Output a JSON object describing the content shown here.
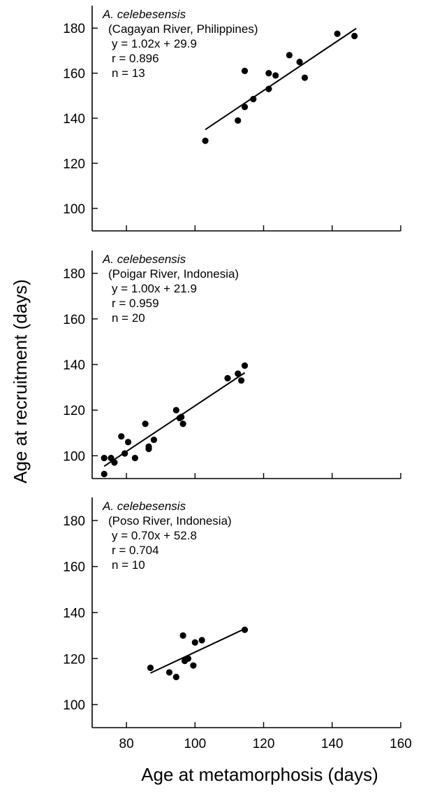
{
  "figure": {
    "ylabel": "Age at recruitment (days)",
    "xlabel": "Age at metamorphosis (days)"
  },
  "chart_data": [
    {
      "type": "scatter",
      "annotation": {
        "species": "A. celebesensis",
        "location": "(Cagayan River, Philippines)",
        "equation": "y = 1.02x + 29.9",
        "r": "r = 0.896",
        "n": "n = 13"
      },
      "xlim": [
        70,
        160
      ],
      "ylim": [
        90,
        190
      ],
      "x_ticks": [
        80,
        100,
        120,
        140,
        160
      ],
      "y_ticks": [
        100,
        120,
        140,
        160,
        180
      ],
      "y_tick_labels": [
        "100",
        "120",
        "140",
        "160",
        "180"
      ],
      "show_x_tick_labels": false,
      "points": [
        {
          "x": 103,
          "y": 130
        },
        {
          "x": 112.5,
          "y": 139
        },
        {
          "x": 114.5,
          "y": 145
        },
        {
          "x": 114.5,
          "y": 161
        },
        {
          "x": 117,
          "y": 148.5
        },
        {
          "x": 121.5,
          "y": 153
        },
        {
          "x": 121.5,
          "y": 160
        },
        {
          "x": 123.5,
          "y": 159
        },
        {
          "x": 127.5,
          "y": 168
        },
        {
          "x": 130.5,
          "y": 165
        },
        {
          "x": 132,
          "y": 158
        },
        {
          "x": 141.5,
          "y": 177.5
        },
        {
          "x": 146.5,
          "y": 176.5
        }
      ],
      "fit": {
        "slope": 1.02,
        "intercept": 29.9,
        "x_range": [
          103,
          147
        ]
      }
    },
    {
      "type": "scatter",
      "annotation": {
        "species": "A. celebesensis",
        "location": "(Poigar River, Indonesia)",
        "equation": "y = 1.00x + 21.9",
        "r": "r = 0.959",
        "n": "n = 20"
      },
      "xlim": [
        70,
        160
      ],
      "ylim": [
        90,
        190
      ],
      "x_ticks": [
        80,
        100,
        120,
        140,
        160
      ],
      "y_ticks": [
        100,
        120,
        140,
        160,
        180
      ],
      "y_tick_labels": [
        "100",
        "120",
        "140",
        "160",
        "180"
      ],
      "show_x_tick_labels": false,
      "points": [
        {
          "x": 73.5,
          "y": 92
        },
        {
          "x": 73.5,
          "y": 99
        },
        {
          "x": 75.5,
          "y": 99
        },
        {
          "x": 76.5,
          "y": 97
        },
        {
          "x": 78.5,
          "y": 108.5
        },
        {
          "x": 79.5,
          "y": 101
        },
        {
          "x": 80.5,
          "y": 106
        },
        {
          "x": 82.5,
          "y": 99
        },
        {
          "x": 85.5,
          "y": 114
        },
        {
          "x": 86.5,
          "y": 103
        },
        {
          "x": 86.5,
          "y": 104
        },
        {
          "x": 88,
          "y": 107
        },
        {
          "x": 94.5,
          "y": 120
        },
        {
          "x": 95.5,
          "y": 116.5
        },
        {
          "x": 96,
          "y": 117
        },
        {
          "x": 96.5,
          "y": 114
        },
        {
          "x": 109.5,
          "y": 134
        },
        {
          "x": 112.5,
          "y": 136
        },
        {
          "x": 113.5,
          "y": 133
        },
        {
          "x": 114.5,
          "y": 139.5
        }
      ],
      "fit": {
        "slope": 1.0,
        "intercept": 21.9,
        "x_range": [
          73.5,
          114.5
        ]
      }
    },
    {
      "type": "scatter",
      "annotation": {
        "species": "A. celebesensis",
        "location": "(Poso River, Indonesia)",
        "equation": "y = 0.70x + 52.8",
        "r": "r = 0.704",
        "n": "n = 10"
      },
      "xlim": [
        70,
        160
      ],
      "ylim": [
        90,
        190
      ],
      "x_ticks": [
        80,
        100,
        120,
        140,
        160
      ],
      "y_ticks": [
        100,
        120,
        140,
        160,
        180
      ],
      "y_tick_labels": [
        "100",
        "120",
        "140",
        "160",
        "180"
      ],
      "x_tick_labels": [
        "80",
        "100",
        "120",
        "140",
        "160"
      ],
      "show_x_tick_labels": true,
      "points": [
        {
          "x": 87,
          "y": 116
        },
        {
          "x": 92.5,
          "y": 114
        },
        {
          "x": 94.5,
          "y": 112
        },
        {
          "x": 96.5,
          "y": 130
        },
        {
          "x": 97,
          "y": 119
        },
        {
          "x": 98,
          "y": 120
        },
        {
          "x": 99.5,
          "y": 117
        },
        {
          "x": 100,
          "y": 127
        },
        {
          "x": 102,
          "y": 128
        },
        {
          "x": 114.5,
          "y": 132.5
        }
      ],
      "fit": {
        "slope": 0.7,
        "intercept": 52.8,
        "x_range": [
          87,
          115
        ]
      }
    }
  ]
}
